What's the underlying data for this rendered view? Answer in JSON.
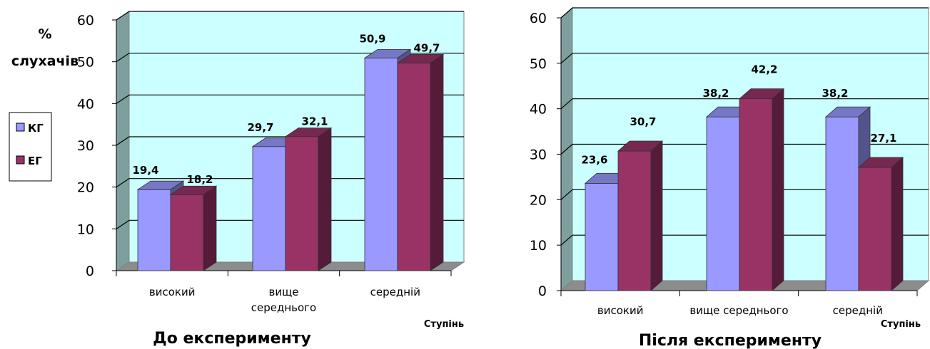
{
  "chart_data": [
    {
      "type": "bar",
      "title": "До експерименту",
      "ylabel": "% слухачів",
      "xlabel": "Ступінь",
      "ylim": [
        0,
        60
      ],
      "yticks": [
        "0",
        "10",
        "20",
        "30",
        "40",
        "50",
        "60"
      ],
      "categories": [
        "високий",
        "вище середнього",
        "середній"
      ],
      "series": [
        {
          "name": "КГ",
          "values": [
            19.4,
            29.7,
            50.9
          ],
          "labels": [
            "19,4",
            "29,7",
            "50,9"
          ],
          "color": "#9999ff"
        },
        {
          "name": "ЕГ",
          "values": [
            18.2,
            32.1,
            49.7
          ],
          "labels": [
            "18,2",
            "32,1",
            "49,7"
          ],
          "color": "#993366"
        }
      ],
      "legend_position": "left",
      "grid": true,
      "wall_color": "#ccffff"
    },
    {
      "type": "bar",
      "title": "Після експерименту",
      "xlabel": "Ступінь",
      "ylim": [
        0,
        60
      ],
      "yticks": [
        "0",
        "10",
        "20",
        "30",
        "40",
        "50",
        "60"
      ],
      "categories": [
        "високий",
        "вище середнього",
        "середній"
      ],
      "series": [
        {
          "name": "КГ",
          "values": [
            23.6,
            38.2,
            38.2
          ],
          "labels": [
            "23,6",
            "38,2",
            "38,2"
          ],
          "color": "#9999ff"
        },
        {
          "name": "ЕГ",
          "values": [
            30.7,
            42.2,
            27.1
          ],
          "labels": [
            "30,7",
            "42,2",
            "27,1"
          ],
          "color": "#993366"
        }
      ],
      "grid": true,
      "wall_color": "#ccffff"
    }
  ]
}
